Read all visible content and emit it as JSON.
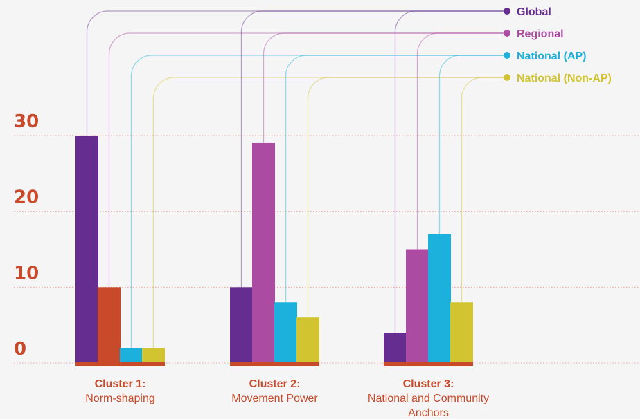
{
  "chart_data": {
    "type": "bar",
    "title": "",
    "xlabel": "",
    "ylabel": "",
    "ylim": [
      0,
      30
    ],
    "yticks": [
      0,
      10,
      20,
      30
    ],
    "grid": true,
    "legend": "top-right",
    "categories": [
      {
        "title": "Cluster 1:",
        "subtitle": [
          "Norm-shaping"
        ]
      },
      {
        "title": "Cluster 2:",
        "subtitle": [
          "Movement Power"
        ]
      },
      {
        "title": "Cluster 3:",
        "subtitle": [
          "National and Community",
          "Anchors"
        ]
      }
    ],
    "series": [
      {
        "name": "Global",
        "color": "#662d91",
        "values": [
          30,
          10,
          4
        ]
      },
      {
        "name": "Regional",
        "color": "#ab4ba1",
        "values": [
          10,
          29,
          15
        ]
      },
      {
        "name": "National (AP)",
        "color": "#1cb0dd",
        "values": [
          2,
          8,
          17
        ]
      },
      {
        "name": "National (Non-AP)",
        "color": "#d2c431",
        "values": [
          2,
          6,
          8
        ]
      }
    ],
    "bar_color_overrides": [
      {
        "series": 1,
        "category": 0,
        "color": "#c84a2a"
      }
    ],
    "colors": {
      "axis": "#c84a2a",
      "gridline": "#e8a79a",
      "background": "#f5f5f5"
    }
  }
}
